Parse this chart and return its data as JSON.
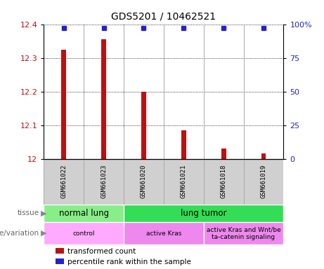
{
  "title": "GDS5201 / 10462521",
  "samples": [
    "GSM661022",
    "GSM661023",
    "GSM661020",
    "GSM661021",
    "GSM661018",
    "GSM661019"
  ],
  "bar_values": [
    12.325,
    12.355,
    12.2,
    12.085,
    12.03,
    12.015
  ],
  "percentile_values": [
    97,
    97,
    97,
    97,
    97,
    97
  ],
  "bar_color": "#bb1111",
  "percentile_color": "#2222cc",
  "ylim_left": [
    12.0,
    12.4
  ],
  "ylim_right": [
    0,
    100
  ],
  "yticks_left": [
    12.0,
    12.1,
    12.2,
    12.3,
    12.4
  ],
  "ytick_labels_left": [
    "12",
    "12.1",
    "12.2",
    "12.3",
    "12.4"
  ],
  "yticks_right": [
    0,
    25,
    50,
    75,
    100
  ],
  "ytick_labels_right": [
    "0",
    "25",
    "50",
    "75",
    "100%"
  ],
  "tissue_labels": [
    {
      "text": "normal lung",
      "start": 0,
      "end": 2,
      "color": "#88ee88"
    },
    {
      "text": "lung tumor",
      "start": 2,
      "end": 6,
      "color": "#33dd55"
    }
  ],
  "genotype_labels": [
    {
      "text": "control",
      "start": 0,
      "end": 2,
      "color": "#ffaaff"
    },
    {
      "text": "active Kras",
      "start": 2,
      "end": 4,
      "color": "#ee88ee"
    },
    {
      "text": "active Kras and Wnt/be\nta-catenin signaling",
      "start": 4,
      "end": 6,
      "color": "#ee88ee"
    }
  ],
  "tissue_row_label": "tissue",
  "genotype_row_label": "genotype/variation",
  "legend_items": [
    {
      "label": "transformed count",
      "color": "#bb1111"
    },
    {
      "label": "percentile rank within the sample",
      "color": "#2222cc"
    }
  ],
  "bar_width": 0.12,
  "sample_box_color": "#d0d0d0",
  "sample_box_edge": "#aaaaaa"
}
